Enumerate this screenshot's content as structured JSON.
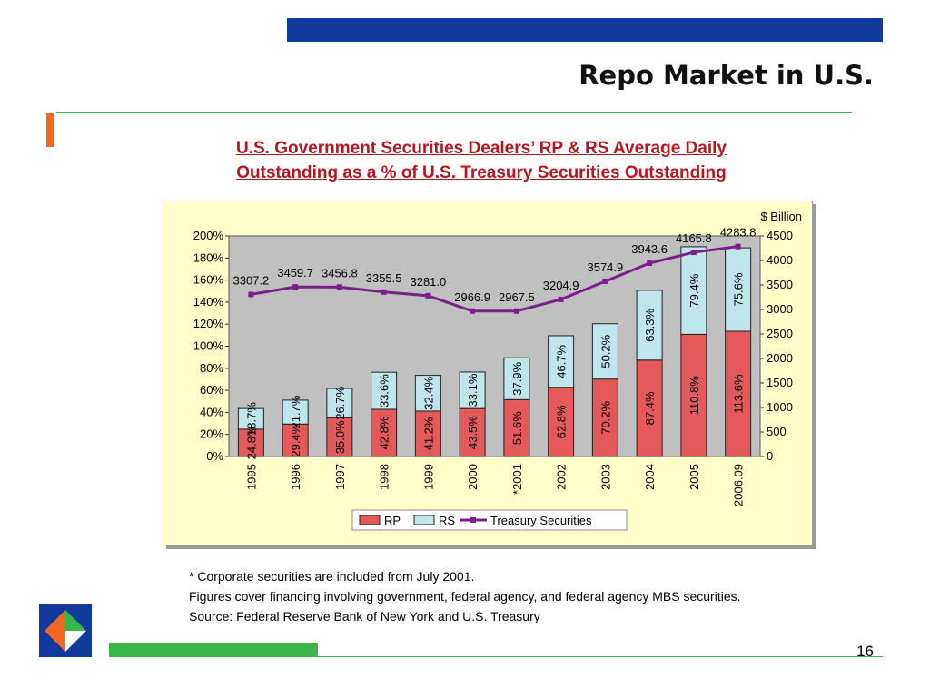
{
  "slide": {
    "title": "Repo Market in U.S.",
    "page_number": "16"
  },
  "chart_title_lines": [
    "U.S. Government Securities Dealers’ RP & RS Average Daily",
    "Outstanding as a % of U.S. Treasury Securities Outstanding"
  ],
  "notes": [
    "* Corporate securities are included from July 2001.",
    "Figures cover financing involving government, federal agency, and federal agency MBS securities.",
    "Source: Federal Reserve Bank of New York and U.S. Treasury"
  ],
  "colors": {
    "top_bar": "#123a9c",
    "accent_green": "#39b54a",
    "accent_orange": "#f26522",
    "subtitle_red": "#b8161e",
    "rp_bar": "#e45a5a",
    "rs_bar": "#bfe6ea",
    "treasury_line": "#7b1f8a",
    "plot_bg": "#c0c0c0",
    "frame_bg": "#ffffcc"
  },
  "chart_data": {
    "type": "bar",
    "stacked": true,
    "categories": [
      "1995",
      "1996",
      "1997",
      "1998",
      "1999",
      "2000",
      "*2001",
      "2002",
      "2003",
      "2004",
      "2005",
      "2006.09"
    ],
    "series": [
      {
        "name": "RP",
        "values": [
          24.8,
          29.4,
          35.0,
          42.8,
          41.2,
          43.5,
          51.6,
          62.8,
          70.2,
          87.4,
          110.8,
          113.6
        ],
        "labels": [
          "24.8%",
          "29.4%",
          "35.0%",
          "42.8%",
          "41.2%",
          "43.5%",
          "51.6%",
          "62.8%",
          "70.2%",
          "87.4%",
          "110.8%",
          "113.6%"
        ]
      },
      {
        "name": "RS",
        "values": [
          18.7,
          21.7,
          26.7,
          33.6,
          32.4,
          33.1,
          37.9,
          46.7,
          50.2,
          63.3,
          79.4,
          75.6
        ],
        "labels": [
          "18.7%",
          "21.7%",
          "26.7%",
          "33.6%",
          "32.4%",
          "33.1%",
          "37.9%",
          "46.7%",
          "50.2%",
          "63.3%",
          "79.4%",
          "75.6%"
        ]
      }
    ],
    "line_series": {
      "name": "Treasury Securities",
      "axis": "right",
      "values": [
        3307.2,
        3459.7,
        3456.8,
        3355.5,
        3281.0,
        2966.9,
        2967.5,
        3204.9,
        3574.9,
        3943.6,
        4165.8,
        4283.8
      ],
      "labels": [
        "3307.2",
        "3459.7",
        "3456.8",
        "3355.5",
        "3281.0",
        "2966.9",
        "2967.5",
        "3204.9",
        "3574.9",
        "3943.6",
        "4165.8",
        "4283.8"
      ]
    },
    "left_axis": {
      "ticks": [
        "0%",
        "20%",
        "40%",
        "60%",
        "80%",
        "100%",
        "120%",
        "140%",
        "160%",
        "180%",
        "200%"
      ],
      "ylim": [
        0,
        200
      ]
    },
    "right_axis": {
      "unit_label": "$ Billion",
      "ticks": [
        "0",
        "500",
        "1000",
        "1500",
        "2000",
        "2500",
        "3000",
        "3500",
        "4000",
        "4500"
      ],
      "ylim": [
        0,
        4500
      ]
    },
    "legend": [
      "RP",
      "RS",
      "Treasury Securities"
    ],
    "legend_position": "bottom"
  }
}
